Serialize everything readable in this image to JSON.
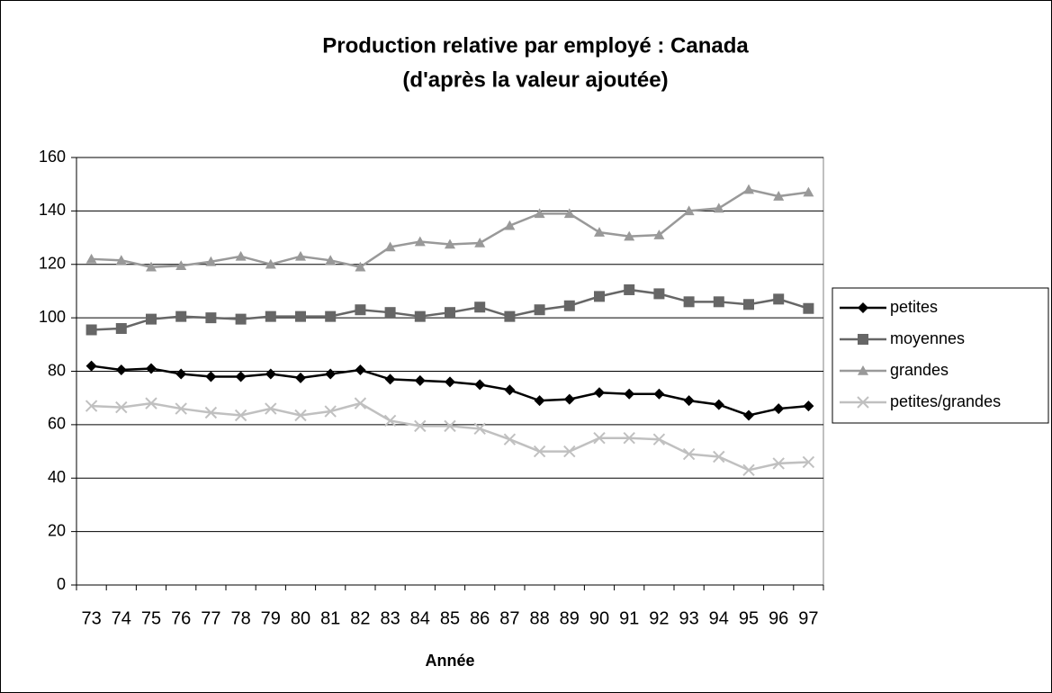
{
  "chart_data": {
    "type": "line",
    "title": [
      "Production relative par employé : Canada",
      "(d'après la valeur ajoutée)"
    ],
    "x_label": "Année",
    "categories": [
      "73",
      "74",
      "75",
      "76",
      "77",
      "78",
      "79",
      "80",
      "81",
      "82",
      "83",
      "84",
      "85",
      "86",
      "87",
      "88",
      "89",
      "90",
      "91",
      "92",
      "93",
      "94",
      "95",
      "96",
      "97"
    ],
    "series": [
      {
        "name": "petites",
        "color": "#000000",
        "marker": "diamond",
        "values": [
          82,
          80.5,
          81,
          79,
          78,
          78,
          79,
          77.5,
          79,
          80.5,
          77,
          76.5,
          76,
          75,
          73,
          69,
          69.5,
          72,
          71.5,
          71.5,
          69,
          67.5,
          63.5,
          66,
          67
        ]
      },
      {
        "name": "moyennes",
        "color": "#666666",
        "marker": "square",
        "values": [
          95.5,
          96,
          99.5,
          100.5,
          100,
          99.5,
          100.5,
          100.5,
          100.5,
          103,
          102,
          100.5,
          102,
          104,
          100.5,
          103,
          104.5,
          108,
          110.5,
          109,
          106,
          106,
          105,
          107,
          103.5
        ]
      },
      {
        "name": "grandes",
        "color": "#999999",
        "marker": "triangle",
        "values": [
          122,
          121.5,
          119,
          119.5,
          121,
          123,
          120,
          123,
          121.5,
          119,
          126.5,
          128.5,
          127.5,
          128,
          134.5,
          139,
          139,
          132,
          130.5,
          131,
          140,
          141,
          148,
          145.5,
          147
        ]
      },
      {
        "name": "petites/grandes",
        "color": "#c0c0c0",
        "marker": "x",
        "values": [
          67,
          66.5,
          68,
          66,
          64.5,
          63.5,
          66,
          63.5,
          65,
          68,
          61.5,
          59.5,
          59.5,
          58.5,
          54.5,
          50,
          50,
          55,
          55,
          54.5,
          49,
          48,
          43,
          45.5,
          46
        ]
      }
    ],
    "ylim": [
      0,
      160
    ],
    "yticks": [
      0,
      20,
      40,
      60,
      80,
      100,
      120,
      140,
      160
    ],
    "grid": true,
    "legend": "right"
  }
}
